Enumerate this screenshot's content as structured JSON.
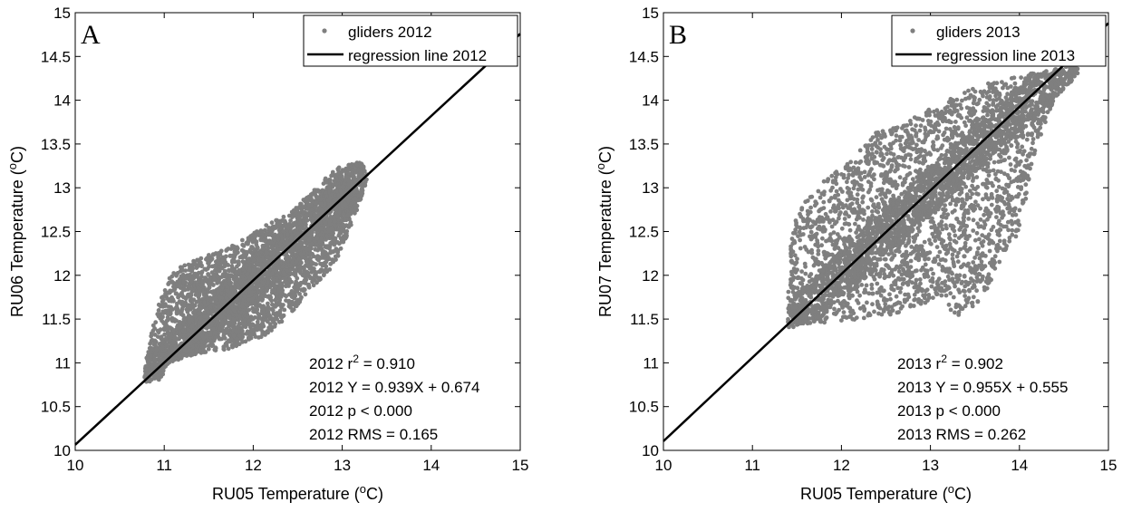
{
  "colors": {
    "points": "#7f7f7f",
    "line": "#000000",
    "axis": "#000000",
    "background": "#ffffff"
  },
  "chart_data": [
    {
      "type": "scatter",
      "panel_label": "A",
      "xlabel": "RU05 Temperature (°C)",
      "xlabel_parts": {
        "pre": "RU05 Temperature (",
        "sup": "o",
        "post": "C)"
      },
      "ylabel": "RU06 Temperature (°C)",
      "ylabel_parts": {
        "pre": "RU06 Temperature (",
        "sup": "o",
        "post": "C)"
      },
      "xlim": [
        10,
        15
      ],
      "ylim": [
        10,
        15
      ],
      "xticks": [
        10,
        11,
        12,
        13,
        14,
        15
      ],
      "xtick_labels": [
        "10",
        "11",
        "12",
        "13",
        "14",
        "15"
      ],
      "yticks": [
        10,
        10.5,
        11,
        11.5,
        12,
        12.5,
        13,
        13.5,
        14,
        14.5,
        15
      ],
      "ytick_labels": [
        "10",
        "10.5",
        "11",
        "11.5",
        "12",
        "12.5",
        "13",
        "13.5",
        "14",
        "14.5",
        "15"
      ],
      "grid": false,
      "legend_position": "top-right",
      "legend": [
        {
          "label": "gliders 2012",
          "kind": "marker"
        },
        {
          "label": "regression line 2012",
          "kind": "line"
        }
      ],
      "scatter_cloud": {
        "name": "gliders 2012",
        "outline": [
          [
            10.78,
            10.78
          ],
          [
            10.95,
            10.8
          ],
          [
            11.05,
            11.0
          ],
          [
            11.35,
            11.1
          ],
          [
            11.7,
            11.15
          ],
          [
            11.9,
            11.2
          ],
          [
            12.2,
            11.35
          ],
          [
            12.45,
            11.6
          ],
          [
            12.65,
            11.85
          ],
          [
            12.9,
            12.1
          ],
          [
            13.1,
            12.55
          ],
          [
            13.2,
            12.85
          ],
          [
            13.3,
            13.15
          ],
          [
            13.2,
            13.3
          ],
          [
            12.95,
            13.25
          ],
          [
            12.7,
            13.0
          ],
          [
            12.4,
            12.7
          ],
          [
            12.1,
            12.55
          ],
          [
            11.8,
            12.35
          ],
          [
            11.4,
            12.2
          ],
          [
            11.1,
            12.05
          ],
          [
            10.95,
            11.75
          ],
          [
            10.85,
            11.3
          ],
          [
            10.78,
            10.95
          ]
        ],
        "samples": [
          [
            12.0,
            11.8
          ],
          [
            11.5,
            11.6
          ],
          [
            12.5,
            12.4
          ],
          [
            11.2,
            11.2
          ],
          [
            12.9,
            12.9
          ],
          [
            11.8,
            11.4
          ],
          [
            12.2,
            12.1
          ],
          [
            11.6,
            11.9
          ],
          [
            12.6,
            12.7
          ],
          [
            11.3,
            11.5
          ]
        ]
      },
      "regression": {
        "slope": 0.939,
        "intercept": 0.674,
        "x_range": [
          10,
          15
        ]
      },
      "annotations": [
        {
          "pre": "2012 r",
          "sup": "2",
          "post": " = 0.910"
        },
        {
          "pre": "2012 Y = 0.939X + 0.674",
          "sup": "",
          "post": ""
        },
        {
          "pre": "2012 p < 0.000",
          "sup": "",
          "post": ""
        },
        {
          "pre": "2012 RMS =  0.165",
          "sup": "",
          "post": ""
        }
      ]
    },
    {
      "type": "scatter",
      "panel_label": "B",
      "xlabel": "RU05 Temperature (°C)",
      "xlabel_parts": {
        "pre": "RU05 Temperature (",
        "sup": "o",
        "post": "C)"
      },
      "ylabel": "RU07 Temperature (°C)",
      "ylabel_parts": {
        "pre": "RU07 Temperature (",
        "sup": "o",
        "post": "C)"
      },
      "xlim": [
        10,
        15
      ],
      "ylim": [
        10,
        15
      ],
      "xticks": [
        10,
        11,
        12,
        13,
        14,
        15
      ],
      "xtick_labels": [
        "10",
        "11",
        "12",
        "13",
        "14",
        "15"
      ],
      "yticks": [
        10,
        10.5,
        11,
        11.5,
        12,
        12.5,
        13,
        13.5,
        14,
        14.5,
        15
      ],
      "ytick_labels": [
        "10",
        "10.5",
        "11",
        "11.5",
        "12",
        "12.5",
        "13",
        "13.5",
        "14",
        "14.5",
        "15"
      ],
      "grid": false,
      "legend_position": "top-right",
      "legend": [
        {
          "label": "gliders 2013",
          "kind": "marker"
        },
        {
          "label": "regression line 2013",
          "kind": "line"
        }
      ],
      "scatter_cloud": {
        "name": "gliders 2013",
        "outline": [
          [
            11.4,
            11.4
          ],
          [
            11.7,
            11.45
          ],
          [
            12.2,
            11.5
          ],
          [
            12.6,
            11.55
          ],
          [
            13.1,
            11.75
          ],
          [
            13.3,
            11.5
          ],
          [
            13.6,
            11.75
          ],
          [
            13.8,
            12.2
          ],
          [
            14.0,
            12.5
          ],
          [
            14.1,
            13.0
          ],
          [
            14.2,
            13.5
          ],
          [
            14.4,
            14.0
          ],
          [
            14.7,
            14.35
          ],
          [
            14.6,
            14.4
          ],
          [
            14.1,
            14.3
          ],
          [
            13.6,
            14.2
          ],
          [
            13.2,
            14.0
          ],
          [
            12.9,
            13.85
          ],
          [
            12.3,
            13.6
          ],
          [
            12.1,
            13.3
          ],
          [
            11.7,
            13.0
          ],
          [
            11.5,
            12.7
          ],
          [
            11.4,
            12.2
          ],
          [
            11.4,
            11.7
          ]
        ],
        "samples": [
          [
            12.0,
            12.2
          ],
          [
            12.8,
            13.0
          ],
          [
            13.5,
            13.5
          ],
          [
            11.8,
            12.0
          ],
          [
            12.5,
            12.0
          ],
          [
            13.8,
            13.8
          ],
          [
            12.2,
            12.8
          ],
          [
            13.2,
            12.6
          ],
          [
            11.6,
            11.7
          ],
          [
            14.2,
            14.1
          ]
        ]
      },
      "regression": {
        "slope": 0.955,
        "intercept": 0.555,
        "x_range": [
          10,
          15
        ]
      },
      "annotations": [
        {
          "pre": "2013 r",
          "sup": "2",
          "post": " = 0.902"
        },
        {
          "pre": "2013 Y = 0.955X + 0.555",
          "sup": "",
          "post": ""
        },
        {
          "pre": "2013 p < 0.000",
          "sup": "",
          "post": ""
        },
        {
          "pre": "2013 RMS =  0.262",
          "sup": "",
          "post": ""
        }
      ]
    }
  ]
}
